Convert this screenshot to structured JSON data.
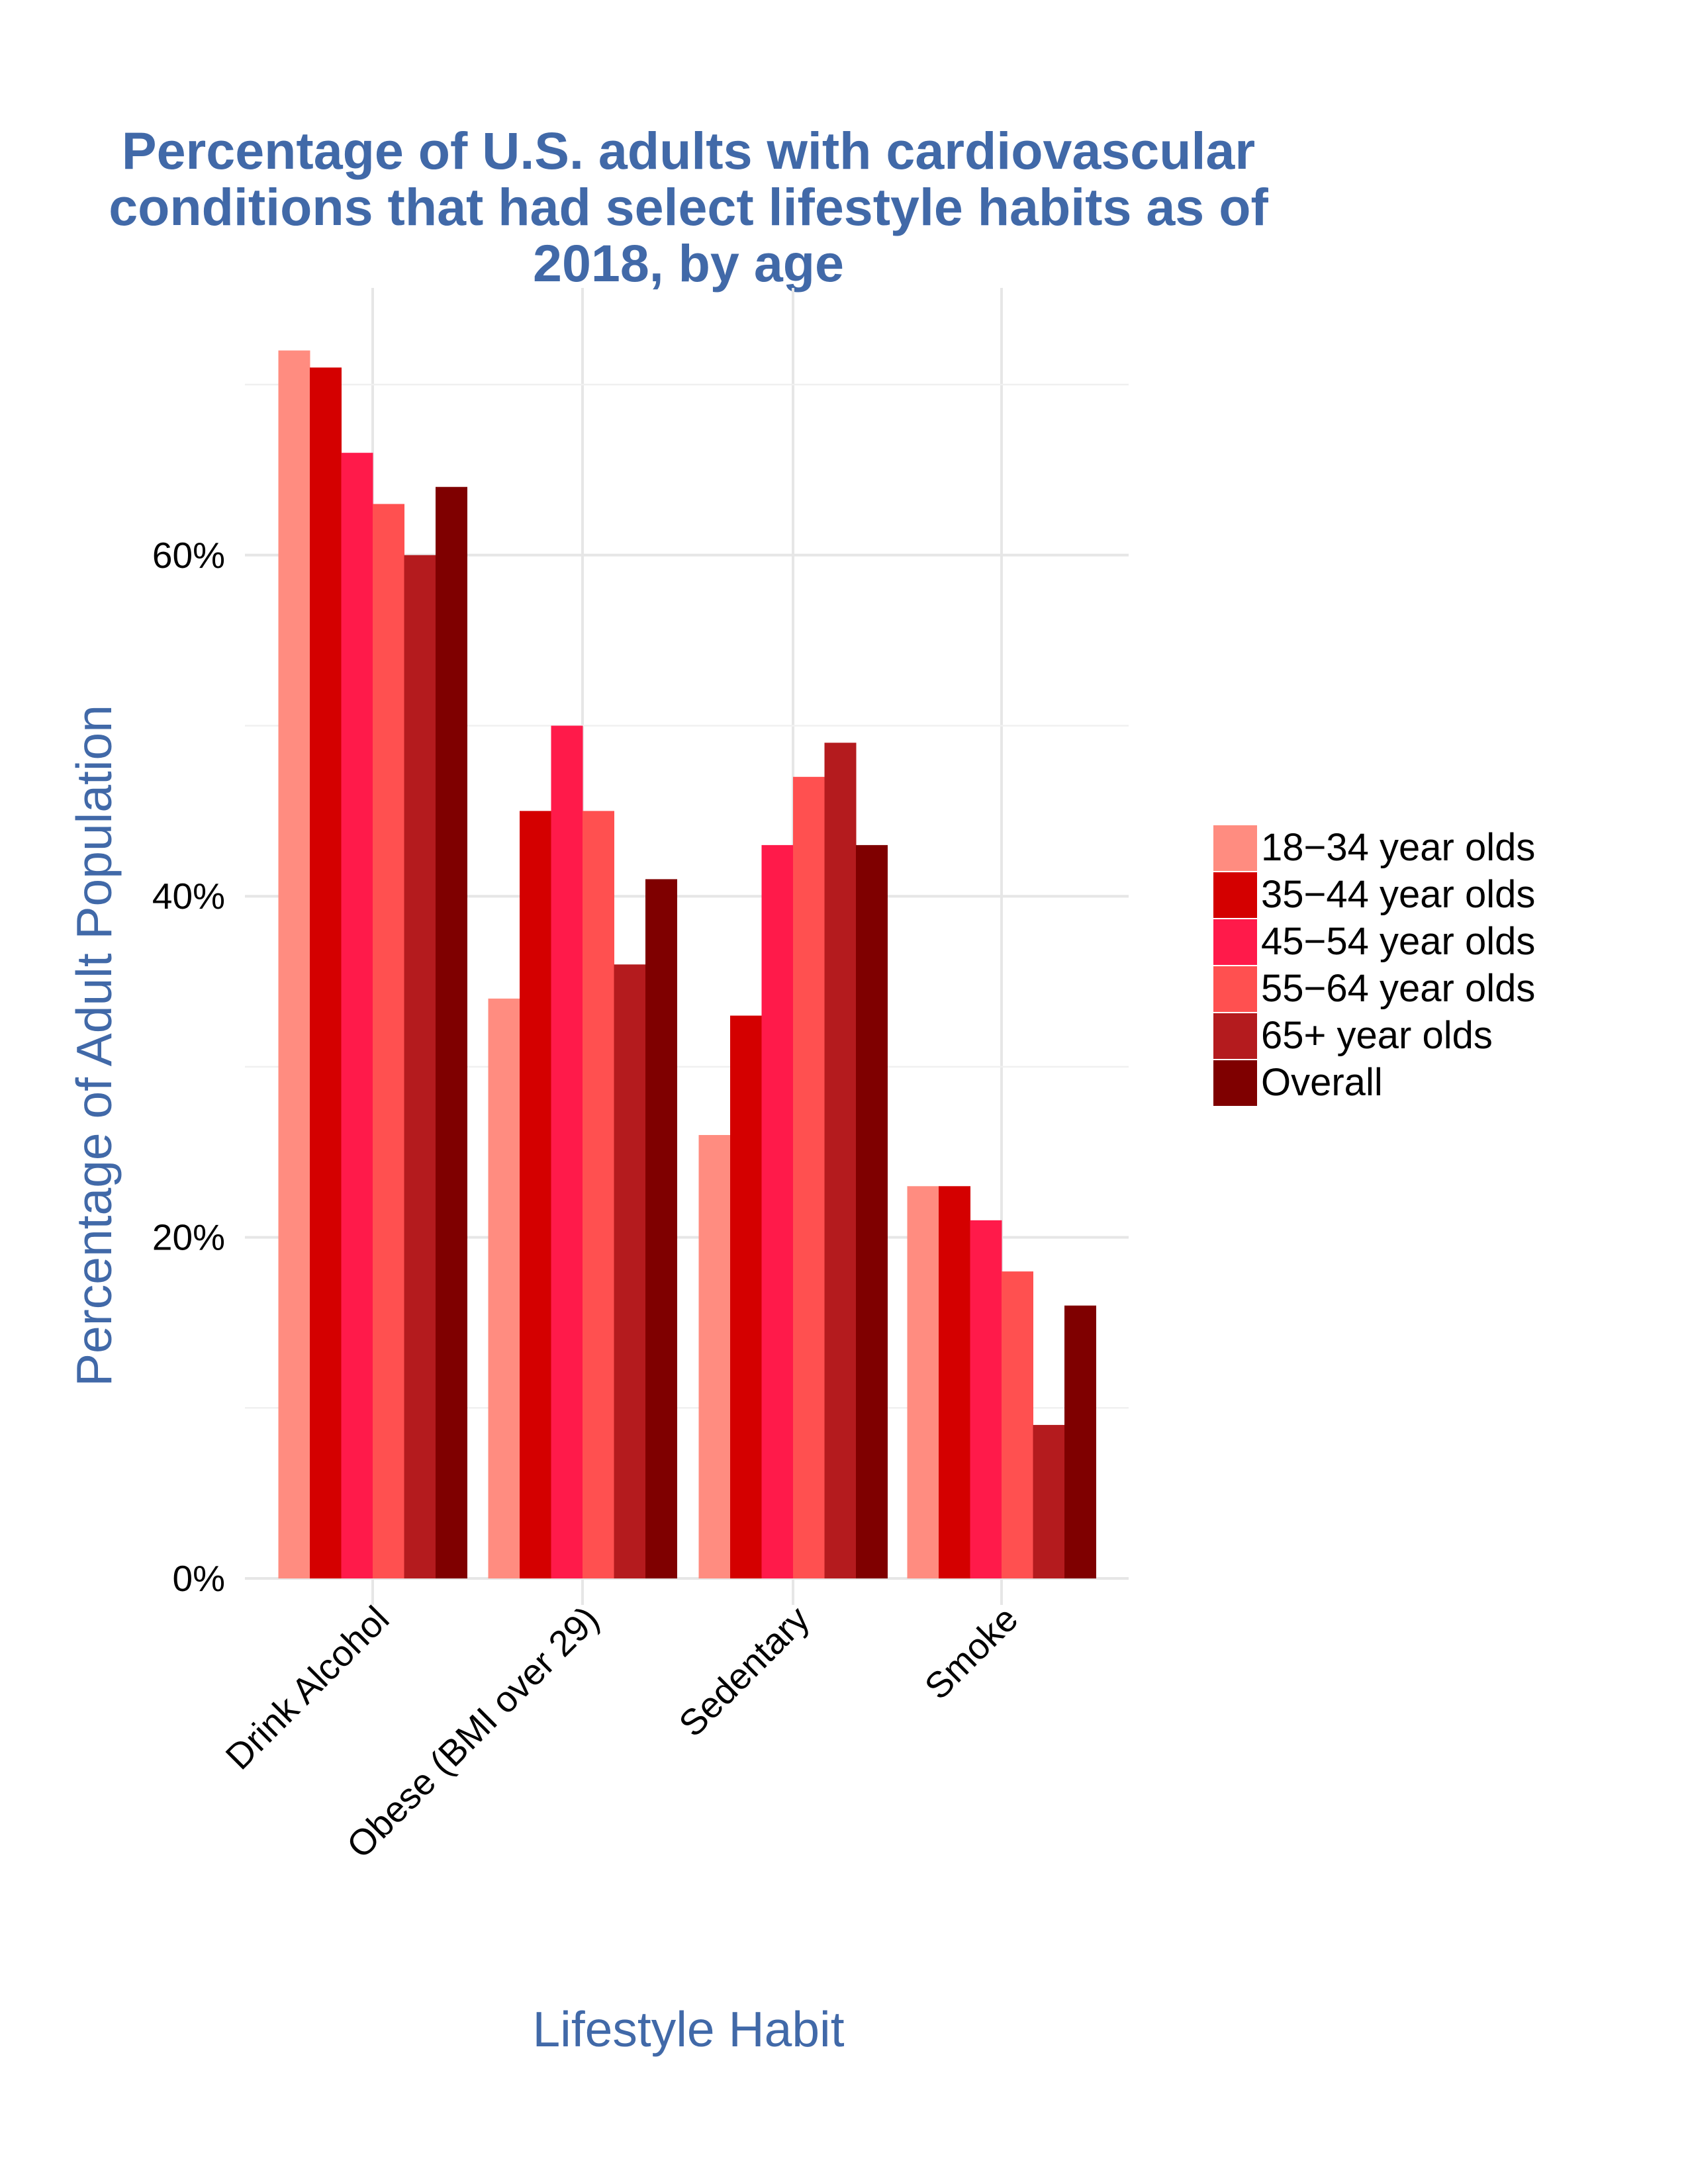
{
  "chart_data": {
    "type": "bar",
    "title": "Percentage of U.S. adults with cardiovascular conditions that had select lifestyle habits as of 2018, by age",
    "title_lines": [
      "Percentage of U.S. adults with cardiovascular",
      "conditions that had select lifestyle habits as of",
      "2018, by age"
    ],
    "xlabel": "Lifestyle Habit",
    "ylabel": "Percentage of Adult Population",
    "categories": [
      "Drink Alcohol",
      "Obese (BMI over 29)",
      "Sedentary",
      "Smoke"
    ],
    "series": [
      {
        "name": "18−34 year olds",
        "color": "#FF8C80",
        "values": [
          72,
          34,
          26,
          23
        ]
      },
      {
        "name": "35−44 year olds",
        "color": "#D40000",
        "values": [
          71,
          45,
          33,
          23
        ]
      },
      {
        "name": "45−54 year olds",
        "color": "#FF1A4A",
        "values": [
          66,
          50,
          43,
          21
        ]
      },
      {
        "name": "55−64 year olds",
        "color": "#FF5050",
        "values": [
          63,
          45,
          47,
          18
        ]
      },
      {
        "name": "65+ year olds",
        "color": "#B41B1E",
        "values": [
          60,
          36,
          49,
          9
        ]
      },
      {
        "name": "Overall",
        "color": "#7F0000",
        "values": [
          64,
          41,
          43,
          16
        ]
      }
    ],
    "ylim": [
      0,
      75
    ],
    "y_ticks": [
      0,
      20,
      40,
      60
    ],
    "y_tick_labels": [
      "0%",
      "20%",
      "40%",
      "60%"
    ],
    "grid": true,
    "legend_position": "right"
  }
}
